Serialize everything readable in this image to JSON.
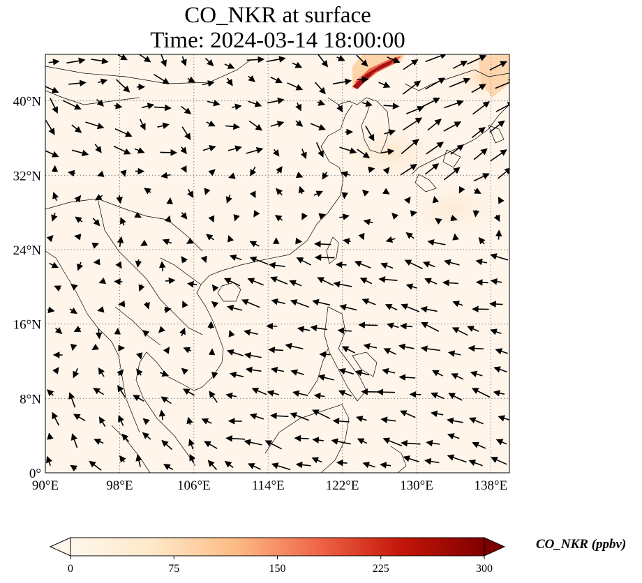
{
  "title": {
    "line1": "CO_NKR at surface",
    "line2": "Time: 2024-03-14 18:00:00"
  },
  "map": {
    "projection": "PlateCarree",
    "lon_range": [
      90,
      140
    ],
    "lat_range": [
      0,
      45
    ],
    "gridlines": "dotted gray",
    "x_ticks": [
      {
        "lon": 90,
        "label": "90°E"
      },
      {
        "lon": 98,
        "label": "98°E"
      },
      {
        "lon": 106,
        "label": "106°E"
      },
      {
        "lon": 114,
        "label": "114°E"
      },
      {
        "lon": 122,
        "label": "122°E"
      },
      {
        "lon": 130,
        "label": "130°E"
      },
      {
        "lon": 138,
        "label": "138°E"
      }
    ],
    "y_ticks": [
      {
        "lat": 0,
        "label": "0°"
      },
      {
        "lat": 8,
        "label": "8°N"
      },
      {
        "lat": 16,
        "label": "16°N"
      },
      {
        "lat": 24,
        "label": "24°N"
      },
      {
        "lat": 32,
        "label": "32°N"
      },
      {
        "lat": 40,
        "label": "40°N"
      }
    ],
    "background_color": "#fff5eb",
    "coastline_color": "#000000",
    "high_concentration_band": {
      "lon": [
        124.5,
        130
      ],
      "lat": [
        41.5,
        45
      ],
      "color": "#a50f15"
    }
  },
  "colorbar": {
    "label": "CO_NKR (ppbv)",
    "min": 0,
    "max": 300,
    "colormap": "OrRd",
    "extend": "both",
    "ticks": [
      "0",
      "75",
      "150",
      "225",
      "300"
    ]
  }
}
